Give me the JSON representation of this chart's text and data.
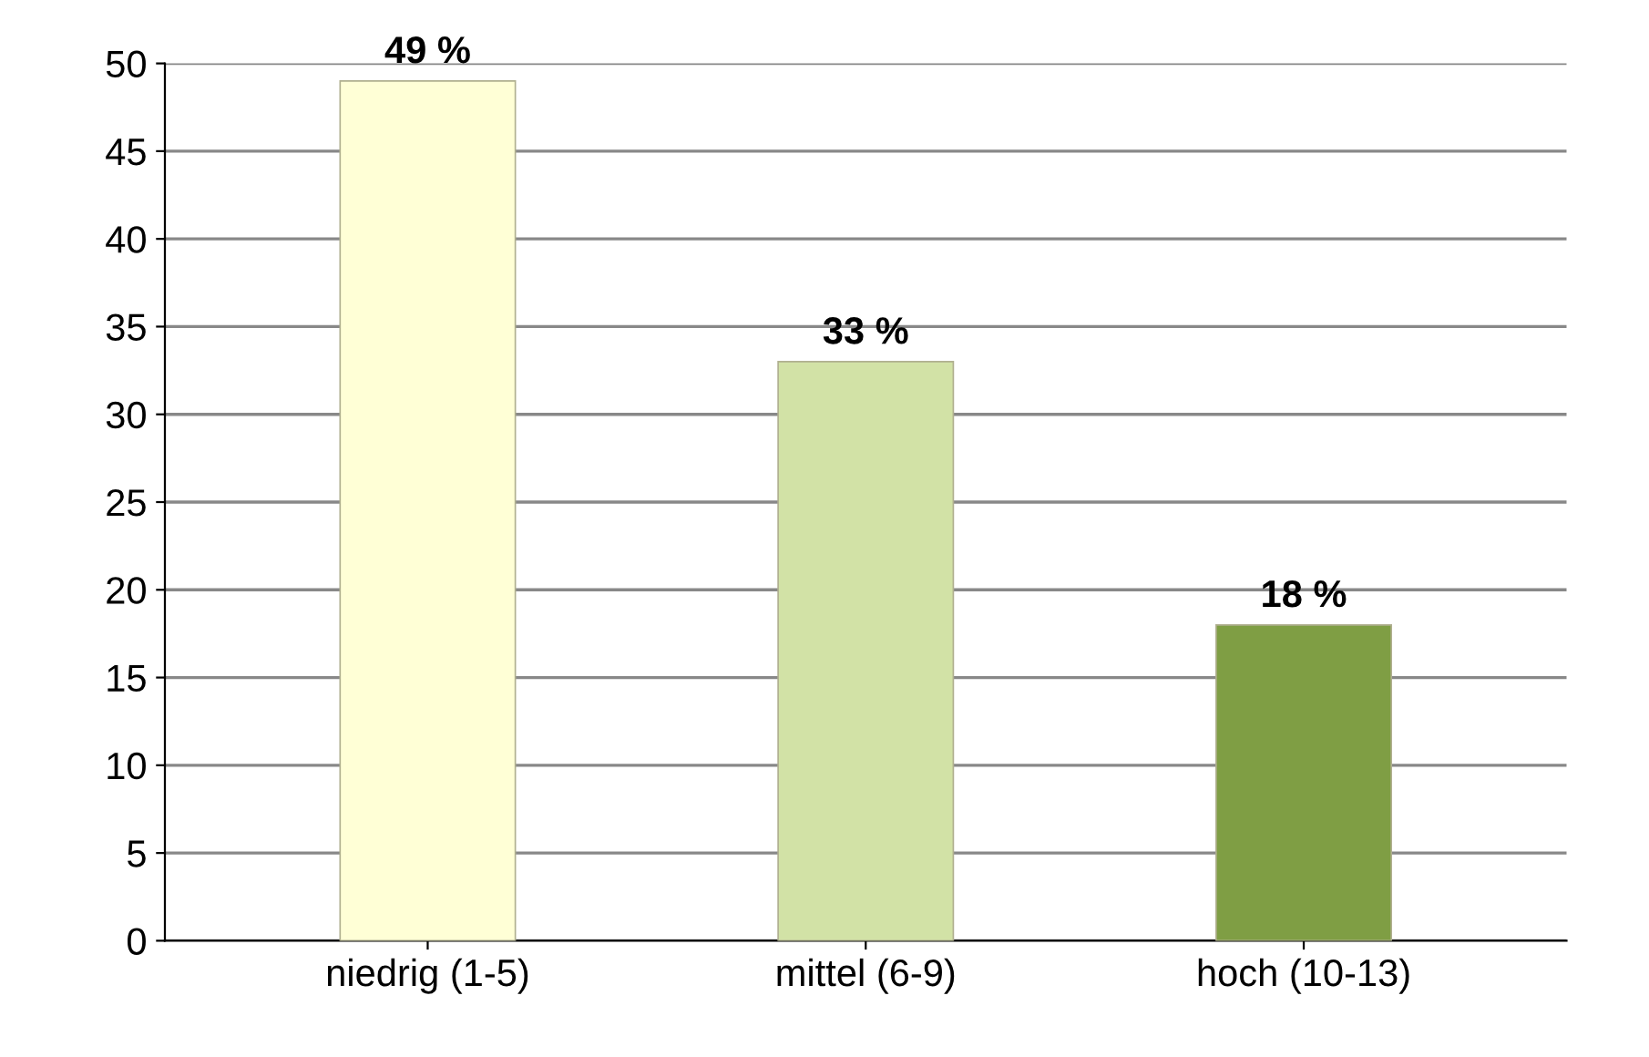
{
  "chart_data": {
    "type": "bar",
    "categories": [
      "niedrig (1-5)",
      "mittel (6-9)",
      "hoch (10-13)"
    ],
    "values": [
      49,
      33,
      18
    ],
    "colors": [
      "#ffffd6",
      "#d2e2a6",
      "#7f9e44"
    ],
    "value_labels": [
      "49 %",
      "33 %",
      "18 %"
    ],
    "ylim": [
      0,
      50
    ],
    "yticks": [
      0,
      5,
      10,
      15,
      20,
      25,
      30,
      35,
      40,
      45,
      50
    ],
    "grid": "y"
  }
}
